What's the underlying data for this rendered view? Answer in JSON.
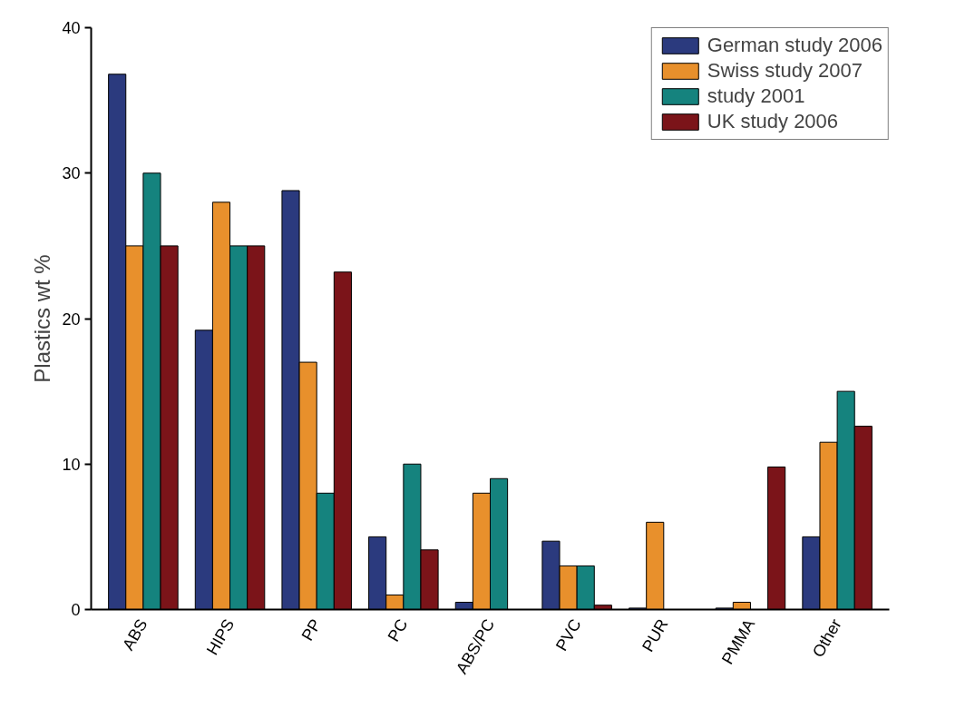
{
  "chart_data": {
    "type": "bar",
    "ylabel": "Plastics wt %",
    "categories": [
      "ABS",
      "HIPS",
      "PP",
      "PC",
      "ABS/PC",
      "PVC",
      "PUR",
      "PMMA",
      "Other"
    ],
    "series": [
      {
        "name": "German study 2006",
        "color": "#2b3a7e",
        "values": [
          36.8,
          19.2,
          28.8,
          5,
          0.5,
          4.7,
          0.1,
          0.1,
          5
        ]
      },
      {
        "name": "Swiss study 2007",
        "color": "#e8902c",
        "values": [
          25,
          28,
          17,
          1,
          8,
          3,
          6,
          0.5,
          11.5
        ]
      },
      {
        "name": "study 2001",
        "color": "#15837e",
        "values": [
          30,
          25,
          8,
          10,
          9,
          3,
          null,
          null,
          15
        ]
      },
      {
        "name": "UK study 2006",
        "color": "#7b1419",
        "values": [
          25,
          25,
          23.2,
          4.1,
          null,
          0.3,
          null,
          9.8,
          12.6
        ]
      }
    ],
    "ylim": [
      0,
      40
    ],
    "yticks": [
      0,
      10,
      20,
      30,
      40
    ],
    "grid": false,
    "legend": "top right"
  }
}
